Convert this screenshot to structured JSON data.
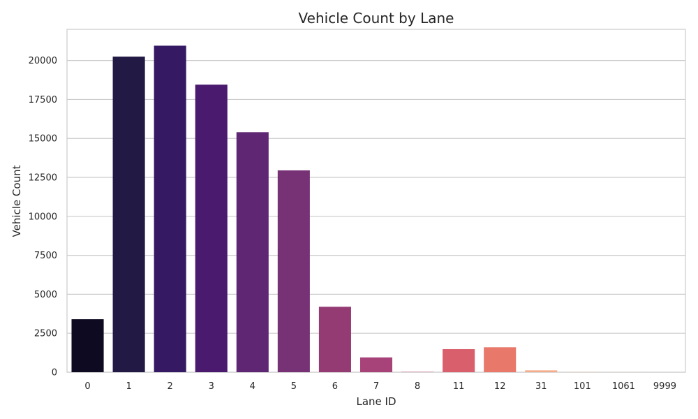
{
  "chart_data": {
    "type": "bar",
    "title": "Vehicle Count by Lane",
    "xlabel": "Lane ID",
    "ylabel": "Vehicle Count",
    "categories": [
      "0",
      "1",
      "2",
      "3",
      "4",
      "5",
      "6",
      "7",
      "8",
      "11",
      "12",
      "31",
      "101",
      "1061",
      "9999"
    ],
    "values": [
      3400,
      20250,
      20950,
      18450,
      15400,
      12950,
      4200,
      950,
      20,
      1480,
      1600,
      120,
      15,
      10,
      10
    ],
    "ylim": [
      0,
      22000
    ],
    "yticks": [
      0,
      2500,
      5000,
      7500,
      10000,
      12500,
      15000,
      17500,
      20000
    ],
    "grid": "y",
    "legend": "none",
    "colors": [
      "#0d0a21",
      "#221a45",
      "#351a63",
      "#4a1a6f",
      "#5f2773",
      "#773175",
      "#943b74",
      "#a84379",
      "#bf4a77",
      "#d95f6d",
      "#e8786a",
      "#f4ad8c",
      "#f7c5a5",
      "#f9d9c0",
      "#fbe7d8"
    ]
  }
}
